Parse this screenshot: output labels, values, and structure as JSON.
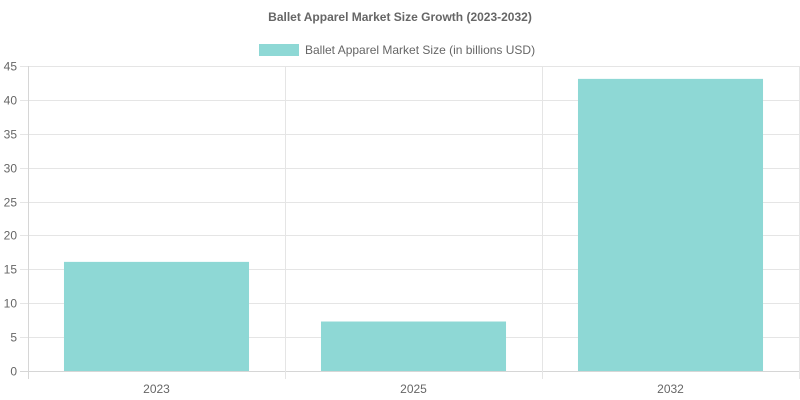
{
  "chart_data": {
    "type": "bar",
    "title": "Ballet Apparel Market Size Growth (2023-2032)",
    "categories": [
      "2023",
      "2025",
      "2032"
    ],
    "series": [
      {
        "name": "Ballet Apparel Market Size (in billions USD)",
        "values": [
          16.1,
          7.3,
          43.1
        ],
        "color": "#8ed8d5"
      }
    ],
    "xlabel": "",
    "ylabel": "",
    "ylim": [
      0,
      45
    ],
    "yticks": [
      0,
      5,
      10,
      15,
      20,
      25,
      30,
      35,
      40,
      45
    ],
    "grid": true,
    "legend_position": "top-center"
  }
}
